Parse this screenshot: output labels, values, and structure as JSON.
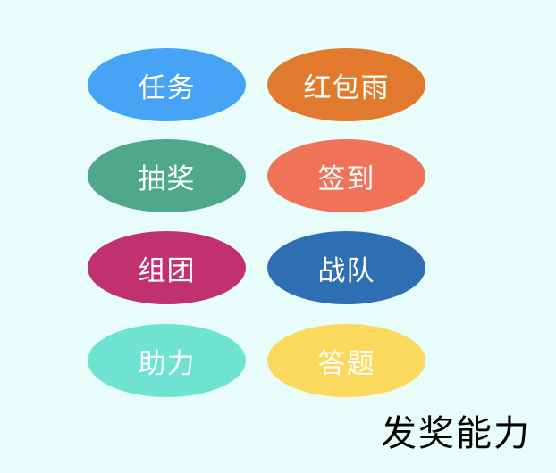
{
  "background": "#e8fcfa",
  "items": [
    {
      "label": "任务",
      "color": "#47a3f5"
    },
    {
      "label": "红包雨",
      "color": "#e27a2d"
    },
    {
      "label": "抽奖",
      "color": "#4fa88b"
    },
    {
      "label": "签到",
      "color": "#ef7259"
    },
    {
      "label": "组团",
      "color": "#c2316f"
    },
    {
      "label": "战队",
      "color": "#2e6fb3"
    },
    {
      "label": "助力",
      "color": "#6fe3d2"
    },
    {
      "label": "答题",
      "color": "#fbd95c"
    }
  ],
  "caption": "发奖能力"
}
